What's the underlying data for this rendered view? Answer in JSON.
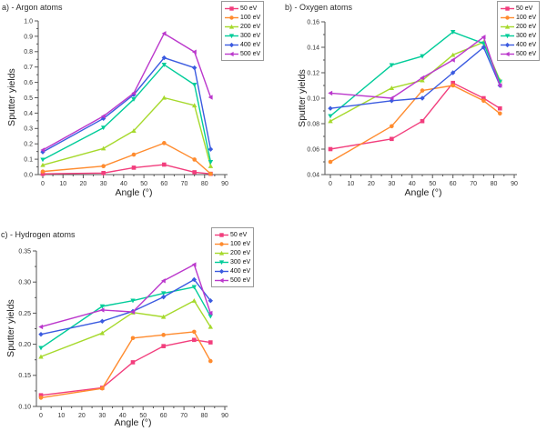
{
  "figure": {
    "xlabel": "Angle (°)",
    "ylabel": "Sputter yields",
    "background": "#ffffff",
    "axis_color": "#555555",
    "text_color": "#333333"
  },
  "chart_data": [
    {
      "id": "a",
      "type": "line",
      "title": "a) - Argon atoms",
      "xlabel": "Angle (°)",
      "ylabel": "Sputter yields",
      "x": [
        0,
        30,
        45,
        60,
        75,
        83
      ],
      "xlim": [
        0,
        90
      ],
      "x_ticks": [
        "0",
        "10",
        "20",
        "30",
        "40",
        "50",
        "60",
        "70",
        "80",
        "90"
      ],
      "ylim": [
        0.0,
        1.0
      ],
      "y_ticks": [
        "0.0",
        "0.1",
        "0.2",
        "0.3",
        "0.4",
        "0.5",
        "0.6",
        "0.7",
        "0.8",
        "0.9",
        "1.0"
      ],
      "grid": false,
      "legend_position": "top-right",
      "series": [
        {
          "name": "50 eV",
          "color": "#F23E7D",
          "marker": "square",
          "values": [
            0.005,
            0.01,
            0.045,
            0.065,
            0.015,
            0.005
          ]
        },
        {
          "name": "100 eV",
          "color": "#FF8B2E",
          "marker": "circle",
          "values": [
            0.02,
            0.055,
            0.13,
            0.205,
            0.098,
            0.005
          ]
        },
        {
          "name": "200 eV",
          "color": "#A6D92C",
          "marker": "triangle-up",
          "values": [
            0.062,
            0.17,
            0.285,
            0.5,
            0.45,
            0.055
          ]
        },
        {
          "name": "300 eV",
          "color": "#00CC99",
          "marker": "triangle-down",
          "values": [
            0.097,
            0.305,
            0.49,
            0.715,
            0.585,
            0.082
          ]
        },
        {
          "name": "400 eV",
          "color": "#3B5BE0",
          "marker": "diamond",
          "values": [
            0.147,
            0.365,
            0.52,
            0.76,
            0.695,
            0.165
          ]
        },
        {
          "name": "500 eV",
          "color": "#BB38CC",
          "marker": "triangle-left",
          "values": [
            0.16,
            0.38,
            0.53,
            0.918,
            0.798,
            0.503
          ]
        }
      ]
    },
    {
      "id": "b",
      "type": "line",
      "title": "b) - Oxygen atoms",
      "xlabel": "Angle (°)",
      "ylabel": "Sputter yields",
      "x": [
        0,
        30,
        45,
        60,
        75,
        83
      ],
      "xlim": [
        0,
        90
      ],
      "x_ticks": [
        "0",
        "10",
        "20",
        "30",
        "40",
        "50",
        "60",
        "70",
        "80",
        "90"
      ],
      "ylim": [
        0.04,
        0.16
      ],
      "y_ticks": [
        "0.04",
        "0.06",
        "0.08",
        "0.10",
        "0.12",
        "0.14",
        "0.16"
      ],
      "grid": false,
      "legend_position": "top-right",
      "series": [
        {
          "name": "50 eV",
          "color": "#F23E7D",
          "marker": "square",
          "values": [
            0.06,
            0.068,
            0.082,
            0.112,
            0.1,
            0.092
          ]
        },
        {
          "name": "100 eV",
          "color": "#FF8B2E",
          "marker": "circle",
          "values": [
            0.05,
            0.078,
            0.106,
            0.11,
            0.098,
            0.088
          ]
        },
        {
          "name": "200 eV",
          "color": "#A6D92C",
          "marker": "triangle-up",
          "values": [
            0.082,
            0.108,
            0.114,
            0.134,
            0.144,
            0.114
          ]
        },
        {
          "name": "300 eV",
          "color": "#00CC99",
          "marker": "triangle-down",
          "values": [
            0.086,
            0.126,
            0.133,
            0.152,
            0.143,
            0.113
          ]
        },
        {
          "name": "400 eV",
          "color": "#3B5BE0",
          "marker": "diamond",
          "values": [
            0.092,
            0.098,
            0.1,
            0.12,
            0.14,
            0.11
          ]
        },
        {
          "name": "500 eV",
          "color": "#BB38CC",
          "marker": "triangle-left",
          "values": [
            0.104,
            0.1,
            0.116,
            0.13,
            0.148,
            0.11
          ]
        }
      ]
    },
    {
      "id": "c",
      "type": "line",
      "title": "c) - Hydrogen atoms",
      "xlabel": "Angle (°)",
      "ylabel": "Sputter yields",
      "x": [
        0,
        30,
        45,
        60,
        75,
        83
      ],
      "xlim": [
        0,
        90
      ],
      "x_ticks": [
        "0",
        "10",
        "20",
        "30",
        "40",
        "50",
        "60",
        "70",
        "80",
        "90"
      ],
      "ylim": [
        0.1,
        0.35
      ],
      "y_ticks": [
        "0.10",
        "0.15",
        "0.20",
        "0.25",
        "0.30",
        "0.35"
      ],
      "grid": false,
      "legend_position": "top-right",
      "series": [
        {
          "name": "50 eV",
          "color": "#F23E7D",
          "marker": "square",
          "values": [
            0.118,
            0.13,
            0.171,
            0.197,
            0.207,
            0.203
          ]
        },
        {
          "name": "100 eV",
          "color": "#FF8B2E",
          "marker": "circle",
          "values": [
            0.114,
            0.129,
            0.21,
            0.215,
            0.22,
            0.173
          ]
        },
        {
          "name": "200 eV",
          "color": "#A6D92C",
          "marker": "triangle-up",
          "values": [
            0.18,
            0.218,
            0.251,
            0.244,
            0.27,
            0.228
          ]
        },
        {
          "name": "300 eV",
          "color": "#00CC99",
          "marker": "triangle-down",
          "values": [
            0.194,
            0.261,
            0.27,
            0.282,
            0.292,
            0.245
          ]
        },
        {
          "name": "400 eV",
          "color": "#3B5BE0",
          "marker": "diamond",
          "values": [
            0.216,
            0.237,
            0.253,
            0.276,
            0.304,
            0.27
          ]
        },
        {
          "name": "500 eV",
          "color": "#BB38CC",
          "marker": "triangle-left",
          "values": [
            0.228,
            0.255,
            0.252,
            0.302,
            0.328,
            0.25
          ]
        }
      ]
    }
  ]
}
